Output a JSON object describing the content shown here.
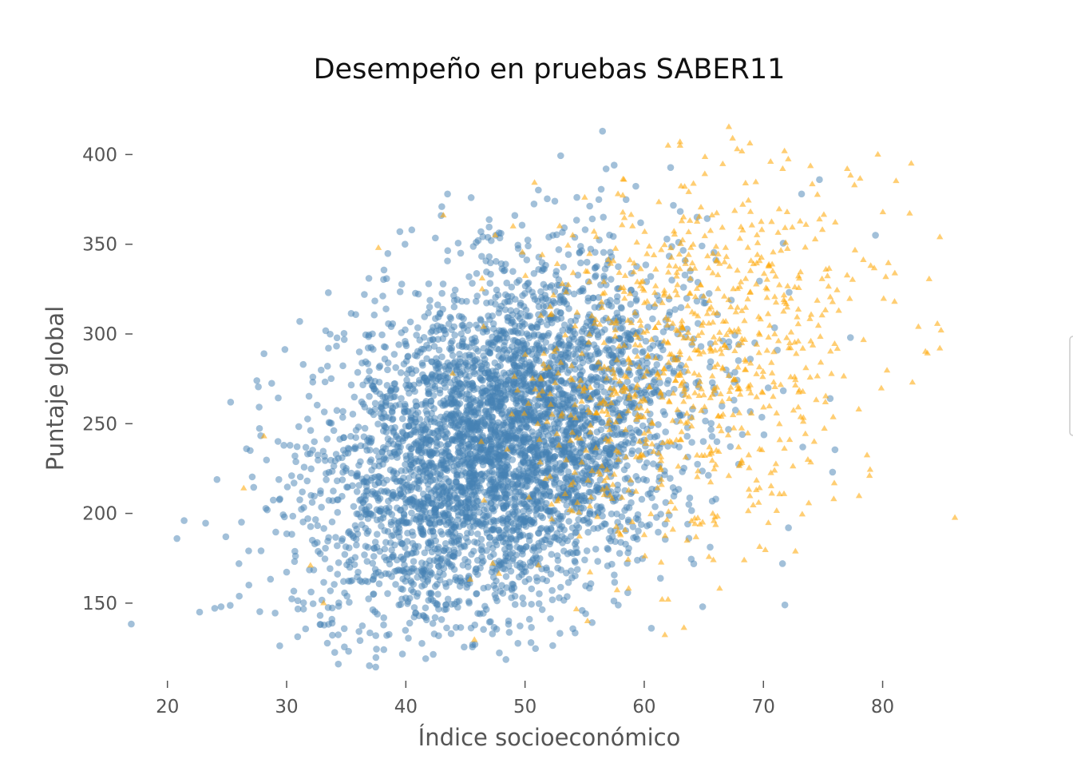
{
  "chart_data": {
    "type": "scatter",
    "title": "Desempeño en pruebas SABER11",
    "xlabel": "Índice socioeconómico",
    "ylabel": "Puntaje global",
    "xlim": [
      16,
      88
    ],
    "ylim": [
      113,
      426
    ],
    "xticks": [
      20,
      30,
      40,
      50,
      60,
      70,
      80
    ],
    "yticks": [
      150,
      200,
      250,
      300,
      350,
      400
    ],
    "grid": false,
    "legend": "right (clipped)",
    "series": [
      {
        "marker": "circle",
        "color": "#4682b4",
        "approx_count": 4500,
        "distribution": {
          "x_mean": 48,
          "x_sd": 7.5,
          "y_mean": 240,
          "y_sd": 45
        },
        "points": [
          [
            56.5,
            413
          ],
          [
            56.8,
            392
          ],
          [
            43.5,
            378
          ],
          [
            52.5,
            374
          ],
          [
            74.7,
            386
          ],
          [
            73.2,
            378
          ],
          [
            20.8,
            186
          ],
          [
            21.4,
            196
          ],
          [
            22.7,
            145
          ],
          [
            24.5,
            148
          ],
          [
            25.3,
            262
          ],
          [
            27.5,
            274
          ],
          [
            28.1,
            289
          ],
          [
            31.1,
            307
          ],
          [
            33.5,
            323
          ],
          [
            38.4,
            132
          ],
          [
            43.8,
            133
          ],
          [
            45.8,
            127
          ],
          [
            50.5,
            128
          ],
          [
            60.6,
            136
          ],
          [
            64.9,
            148
          ],
          [
            71.8,
            149
          ],
          [
            71.6,
            172
          ],
          [
            72.1,
            192
          ],
          [
            73.3,
            237
          ],
          [
            75.6,
            264
          ],
          [
            75.8,
            223
          ],
          [
            77.3,
            298
          ],
          [
            79.4,
            355
          ],
          [
            39.5,
            357
          ],
          [
            40.5,
            358
          ],
          [
            46.3,
            357
          ],
          [
            63.3,
            326
          ],
          [
            58.9,
            206
          ],
          [
            36.9,
            331
          ],
          [
            33.8,
            141
          ],
          [
            24.9,
            187
          ],
          [
            26.0,
            172
          ],
          [
            30.7,
            232
          ],
          [
            32.2,
            276
          ],
          [
            36.1,
            290
          ],
          [
            44.6,
            345
          ],
          [
            50.2,
            328
          ],
          [
            52.0,
            354
          ],
          [
            55.2,
            340
          ],
          [
            59.7,
            362
          ],
          [
            62.8,
            300
          ],
          [
            66.1,
            240
          ],
          [
            68.9,
            286
          ],
          [
            70.4,
            270
          ]
        ]
      },
      {
        "marker": "triangle",
        "color": "#ffa500",
        "approx_count": 900,
        "distribution": {
          "x_mean": 64,
          "x_sd": 7,
          "y_mean": 285,
          "y_sd": 50
        },
        "points": [
          [
            62.0,
            405
          ],
          [
            63.0,
            407
          ],
          [
            67.8,
            403
          ],
          [
            79.6,
            400
          ],
          [
            82.4,
            395
          ],
          [
            84.8,
            354
          ],
          [
            84.9,
            302
          ],
          [
            84.8,
            292
          ],
          [
            82.5,
            273
          ],
          [
            83.0,
            304
          ],
          [
            78.9,
            221
          ],
          [
            75.9,
            208
          ],
          [
            79.0,
            338
          ],
          [
            81.0,
            318
          ],
          [
            68.5,
            384
          ],
          [
            70.6,
            396
          ],
          [
            57.8,
            378
          ],
          [
            58.3,
            386
          ],
          [
            54.0,
            355
          ],
          [
            46.4,
            325
          ],
          [
            47.5,
            355
          ],
          [
            49.0,
            360
          ],
          [
            37.7,
            348
          ],
          [
            26.4,
            214
          ],
          [
            28.1,
            243
          ],
          [
            32.0,
            171
          ],
          [
            33.1,
            150
          ],
          [
            46.4,
            331
          ],
          [
            52.7,
            339
          ],
          [
            55.4,
            329
          ],
          [
            62.4,
            191
          ],
          [
            61.5,
            152
          ],
          [
            62.0,
            152
          ],
          [
            60.0,
            188
          ],
          [
            57.8,
            190
          ],
          [
            64.9,
            195
          ],
          [
            65.8,
            174
          ],
          [
            69.6,
            206
          ],
          [
            69.4,
            213
          ],
          [
            66.0,
            227
          ],
          [
            78.0,
            258
          ],
          [
            75.2,
            262
          ]
        ]
      }
    ]
  }
}
